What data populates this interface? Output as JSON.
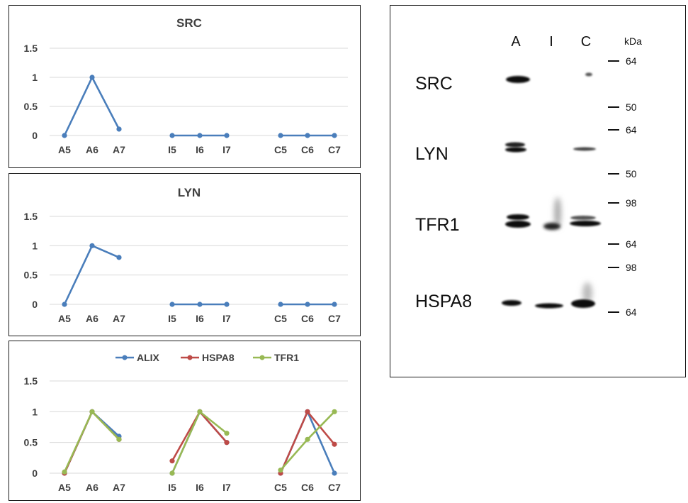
{
  "chart_data": [
    {
      "type": "line",
      "title": "SRC",
      "groups": [
        [
          "A5",
          "A6",
          "A7"
        ],
        [
          "I5",
          "I6",
          "I7"
        ],
        [
          "C5",
          "C6",
          "C7"
        ]
      ],
      "ylim": [
        0,
        1.5
      ],
      "yticks": [
        "0",
        "0.5",
        "1",
        "1.5"
      ],
      "grid": true,
      "series": [
        {
          "color": "#4a7ebb",
          "values": [
            [
              0,
              1,
              0.11
            ],
            [
              0,
              0,
              0
            ],
            [
              0,
              0,
              0
            ]
          ]
        }
      ]
    },
    {
      "type": "line",
      "title": "LYN",
      "groups": [
        [
          "A5",
          "A6",
          "A7"
        ],
        [
          "I5",
          "I6",
          "I7"
        ],
        [
          "C5",
          "C6",
          "C7"
        ]
      ],
      "ylim": [
        0,
        1.5
      ],
      "yticks": [
        "0",
        "0.5",
        "1",
        "1.5"
      ],
      "grid": true,
      "series": [
        {
          "color": "#4a7ebb",
          "values": [
            [
              0,
              1,
              0.8
            ],
            [
              0,
              0,
              0
            ],
            [
              0,
              0,
              0
            ]
          ]
        }
      ]
    },
    {
      "type": "line",
      "title": "",
      "legend_position": "top",
      "groups": [
        [
          "A5",
          "A6",
          "A7"
        ],
        [
          "I5",
          "I6",
          "I7"
        ],
        [
          "C5",
          "C6",
          "C7"
        ]
      ],
      "ylim": [
        0,
        1.5
      ],
      "yticks": [
        "0",
        "0.5",
        "1",
        "1.5"
      ],
      "grid": true,
      "series": [
        {
          "name": "ALIX",
          "color": "#4a7ebb",
          "values": [
            [
              0,
              1,
              0.6
            ],
            [
              0,
              1,
              0.5
            ],
            [
              0,
              1,
              0
            ]
          ]
        },
        {
          "name": "HSPA8",
          "color": "#be4b48",
          "values": [
            [
              0,
              1,
              0.55
            ],
            [
              0.2,
              1,
              0.5
            ],
            [
              0,
              1,
              0.47
            ]
          ]
        },
        {
          "name": "TFR1",
          "color": "#98b954",
          "values": [
            [
              0.02,
              1,
              0.55
            ],
            [
              0,
              1,
              0.65
            ],
            [
              0.05,
              0.55,
              1
            ]
          ]
        }
      ]
    }
  ],
  "blot": {
    "lanes": [
      "A",
      "I",
      "C"
    ],
    "unit": "kDa",
    "rows": [
      {
        "label": "SRC",
        "markers": [
          "64",
          "50"
        ]
      },
      {
        "label": "LYN",
        "markers": [
          "64",
          "50"
        ]
      },
      {
        "label": "TFR1",
        "markers": [
          "98",
          "64"
        ]
      },
      {
        "label": "HSPA8",
        "markers": [
          "98",
          "64"
        ]
      }
    ]
  }
}
